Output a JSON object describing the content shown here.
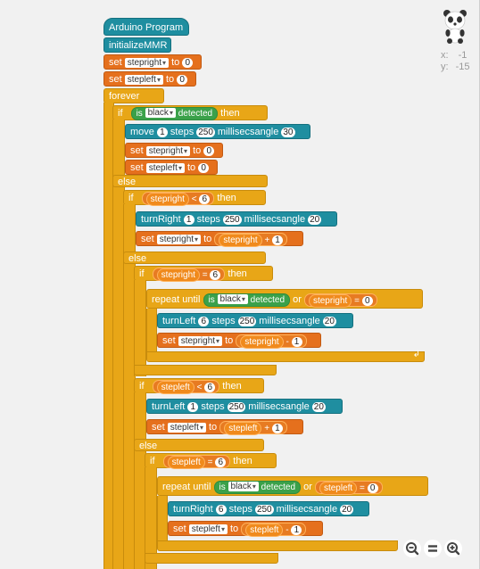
{
  "sprite": {
    "x_label": "x:",
    "x_value": "-1",
    "y_label": "y:",
    "y_value": "-15"
  },
  "blocks": {
    "hat": "Arduino Program",
    "init": "initializeMMR",
    "set_word": "set",
    "to_word": "to",
    "forever": "forever",
    "if_word": "if",
    "then_word": "then",
    "else_word": "else",
    "is_word": "is",
    "black": "black",
    "detected": "detected",
    "or_word": "or",
    "repeat_until": "repeat until",
    "steps": "steps",
    "millisecs": "millisecs",
    "angle": "angle",
    "move": "move",
    "turnRight": "turnRight",
    "turnLeft": "turnLeft",
    "stepright": "stepright",
    "stepleft": "stepleft",
    "lt": "<",
    "eq": "=",
    "plus": "+",
    "minus": "-",
    "n0": "0",
    "n1": "1",
    "n6": "6",
    "n250": "250",
    "n30": "30",
    "n20": "20"
  }
}
